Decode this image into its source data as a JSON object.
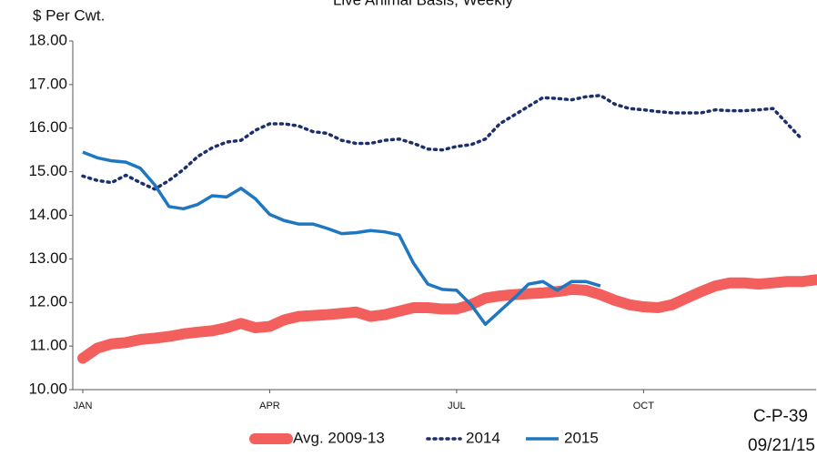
{
  "chart_data": {
    "type": "line",
    "title": "Live Animal Basis, Weekly",
    "y_axis_label": "$ Per Cwt.",
    "annotations": [
      "C-P-39",
      "09/21/15"
    ],
    "x": [
      1,
      2,
      3,
      4,
      5,
      6,
      7,
      8,
      9,
      10,
      11,
      12,
      13,
      14,
      15,
      16,
      17,
      18,
      19,
      20,
      21,
      22,
      23,
      24,
      25,
      26,
      27,
      28,
      29,
      30,
      31,
      32,
      33,
      34,
      35,
      36,
      37,
      38,
      39,
      40,
      41,
      42,
      43,
      44,
      45,
      46,
      47,
      48,
      49,
      50,
      51,
      52
    ],
    "xlim": [
      1,
      52
    ],
    "xticks": [
      {
        "value": 1,
        "label": "JAN"
      },
      {
        "value": 14,
        "label": "APR"
      },
      {
        "value": 27,
        "label": "JUL"
      },
      {
        "value": 40,
        "label": "OCT"
      }
    ],
    "ylim": [
      10,
      18
    ],
    "yticks": [
      {
        "value": 10,
        "label": "10.00"
      },
      {
        "value": 11,
        "label": "11.00"
      },
      {
        "value": 12,
        "label": "12.00"
      },
      {
        "value": 13,
        "label": "13.00"
      },
      {
        "value": 14,
        "label": "14.00"
      },
      {
        "value": 15,
        "label": "15.00"
      },
      {
        "value": 16,
        "label": "16.00"
      },
      {
        "value": 17,
        "label": "17.00"
      },
      {
        "value": 18,
        "label": "18.00"
      }
    ],
    "grid": false,
    "legend": "bottom",
    "series": [
      {
        "name": "Avg. 2009-13",
        "color": "#f25f5c",
        "style": "thick",
        "values": [
          10.72,
          10.95,
          11.05,
          11.08,
          11.15,
          11.18,
          11.22,
          11.28,
          11.32,
          11.35,
          11.42,
          11.52,
          11.42,
          11.45,
          11.6,
          11.68,
          11.7,
          11.72,
          11.75,
          11.78,
          11.68,
          11.72,
          11.8,
          11.88,
          11.88,
          11.85,
          11.85,
          11.95,
          12.1,
          12.15,
          12.18,
          12.2,
          12.22,
          12.25,
          12.3,
          12.28,
          12.18,
          12.05,
          11.95,
          11.9,
          11.88,
          11.95,
          12.1,
          12.25,
          12.38,
          12.45,
          12.45,
          12.42,
          12.45,
          12.48,
          12.48,
          12.52
        ]
      },
      {
        "name": "2014",
        "color": "#1b2f6b",
        "style": "dotted",
        "values": [
          14.9,
          14.8,
          14.75,
          14.92,
          14.75,
          14.6,
          14.8,
          15.05,
          15.35,
          15.55,
          15.68,
          15.72,
          15.95,
          16.1,
          16.1,
          16.05,
          15.92,
          15.88,
          15.72,
          15.65,
          15.65,
          15.72,
          15.75,
          15.65,
          15.52,
          15.5,
          15.58,
          15.62,
          15.75,
          16.1,
          16.3,
          16.5,
          16.7,
          16.68,
          16.65,
          16.72,
          16.75,
          16.55,
          16.45,
          16.42,
          16.38,
          16.35,
          16.35,
          16.35,
          16.42,
          16.4,
          16.4,
          16.42,
          16.45,
          16.1,
          15.75,
          null
        ]
      },
      {
        "name": "2015",
        "color": "#1f77c0",
        "style": "solid",
        "values": [
          15.45,
          15.32,
          15.25,
          15.22,
          15.08,
          14.7,
          14.2,
          14.15,
          14.25,
          14.45,
          14.42,
          14.62,
          14.38,
          14.02,
          13.88,
          13.8,
          13.8,
          13.7,
          13.58,
          13.6,
          13.65,
          13.62,
          13.55,
          12.9,
          12.42,
          12.3,
          12.28,
          11.95,
          11.5,
          11.8,
          12.1,
          12.42,
          12.48,
          12.28,
          12.48,
          12.48,
          12.38,
          null,
          null,
          null,
          null,
          null,
          null,
          null,
          null,
          null,
          null,
          null,
          null,
          null,
          null,
          null
        ]
      }
    ]
  }
}
